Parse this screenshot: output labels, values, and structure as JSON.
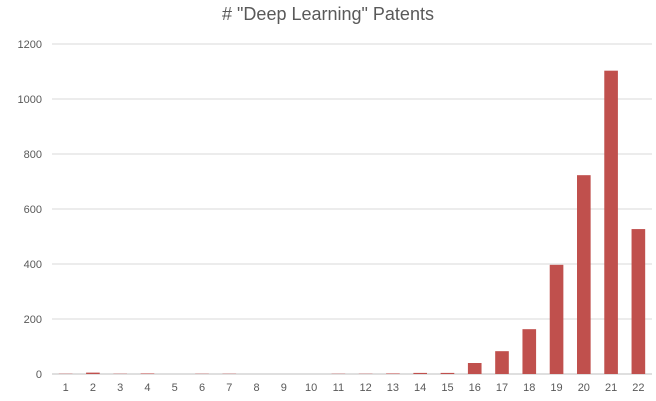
{
  "chart_data": {
    "type": "bar",
    "title": "# \"Deep Learning\" Patents",
    "xlabel": "",
    "ylabel": "",
    "categories": [
      "1",
      "2",
      "3",
      "4",
      "5",
      "6",
      "7",
      "8",
      "9",
      "10",
      "11",
      "12",
      "13",
      "14",
      "15",
      "16",
      "17",
      "18",
      "19",
      "20",
      "21",
      "22"
    ],
    "series": [
      {
        "values": [
          1,
          5,
          1,
          2,
          0,
          1,
          1,
          0,
          0,
          0,
          1,
          1,
          2,
          4,
          4,
          40,
          83,
          163,
          397,
          723,
          1103,
          527
        ]
      }
    ],
    "ylim": [
      0,
      1200
    ],
    "yticks": [
      0,
      200,
      400,
      600,
      800,
      1000,
      1200
    ],
    "grid": true,
    "legend": "none",
    "bar_color": "#c0504d",
    "grid_color": "#d9d9d9",
    "axis_color": "#bfbfbf"
  }
}
